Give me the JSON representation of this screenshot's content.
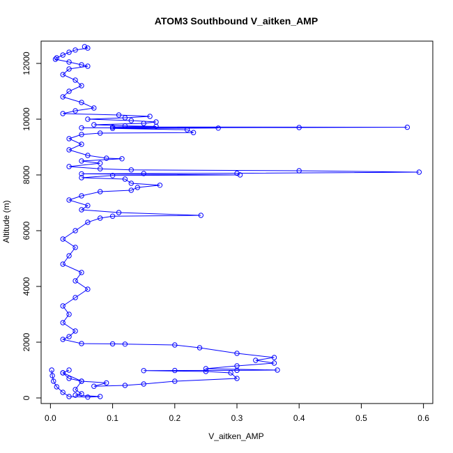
{
  "chart_data": {
    "type": "line",
    "title": "ATOM3 Southbound V_aitken_AMP",
    "xlabel": "V_aitken_AMP",
    "ylabel": "Altitude (m)",
    "xlim": [
      -0.015,
      0.615
    ],
    "ylim": [
      -200,
      12800
    ],
    "x_ticks": [
      "0.0",
      "0.1",
      "0.2",
      "0.3",
      "0.4",
      "0.5",
      "0.6"
    ],
    "y_ticks": [
      "0",
      "2000",
      "4000",
      "6000",
      "8000",
      "10000",
      "12000"
    ],
    "grid": false,
    "legend": "none",
    "marker": "open-circle",
    "series": [
      {
        "color": "#0000ff",
        "points": [
          [
            0.055,
            12600
          ],
          [
            0.06,
            12550
          ],
          [
            0.04,
            12480
          ],
          [
            0.03,
            12400
          ],
          [
            0.02,
            12300
          ],
          [
            0.01,
            12200
          ],
          [
            0.008,
            12150
          ],
          [
            0.03,
            12050
          ],
          [
            0.05,
            11950
          ],
          [
            0.06,
            11900
          ],
          [
            0.03,
            11800
          ],
          [
            0.02,
            11600
          ],
          [
            0.04,
            11400
          ],
          [
            0.05,
            11200
          ],
          [
            0.03,
            11000
          ],
          [
            0.02,
            10800
          ],
          [
            0.05,
            10600
          ],
          [
            0.07,
            10400
          ],
          [
            0.04,
            10300
          ],
          [
            0.02,
            10200
          ],
          [
            0.11,
            10150
          ],
          [
            0.16,
            10100
          ],
          [
            0.12,
            10050
          ],
          [
            0.06,
            10000
          ],
          [
            0.13,
            9950
          ],
          [
            0.17,
            9900
          ],
          [
            0.15,
            9850
          ],
          [
            0.07,
            9800
          ],
          [
            0.12,
            9760
          ],
          [
            0.17,
            9740
          ],
          [
            0.1,
            9720
          ],
          [
            0.574,
            9710
          ],
          [
            0.4,
            9700
          ],
          [
            0.05,
            9690
          ],
          [
            0.27,
            9680
          ],
          [
            0.1,
            9670
          ],
          [
            0.22,
            9620
          ],
          [
            0.23,
            9520
          ],
          [
            0.08,
            9500
          ],
          [
            0.05,
            9450
          ],
          [
            0.03,
            9300
          ],
          [
            0.05,
            9100
          ],
          [
            0.03,
            8900
          ],
          [
            0.06,
            8700
          ],
          [
            0.09,
            8600
          ],
          [
            0.115,
            8580
          ],
          [
            0.05,
            8500
          ],
          [
            0.08,
            8420
          ],
          [
            0.03,
            8300
          ],
          [
            0.08,
            8220
          ],
          [
            0.13,
            8180
          ],
          [
            0.4,
            8150
          ],
          [
            0.593,
            8100
          ],
          [
            0.3,
            8060
          ],
          [
            0.15,
            8050
          ],
          [
            0.05,
            8040
          ],
          [
            0.305,
            8000
          ],
          [
            0.1,
            7980
          ],
          [
            0.05,
            7900
          ],
          [
            0.12,
            7850
          ],
          [
            0.13,
            7700
          ],
          [
            0.176,
            7630
          ],
          [
            0.14,
            7550
          ],
          [
            0.13,
            7450
          ],
          [
            0.08,
            7400
          ],
          [
            0.05,
            7250
          ],
          [
            0.03,
            7100
          ],
          [
            0.06,
            6900
          ],
          [
            0.05,
            6750
          ],
          [
            0.11,
            6650
          ],
          [
            0.242,
            6550
          ],
          [
            0.1,
            6520
          ],
          [
            0.08,
            6450
          ],
          [
            0.06,
            6300
          ],
          [
            0.04,
            6000
          ],
          [
            0.02,
            5700
          ],
          [
            0.04,
            5400
          ],
          [
            0.03,
            5100
          ],
          [
            0.02,
            4800
          ],
          [
            0.05,
            4500
          ],
          [
            0.04,
            4200
          ],
          [
            0.06,
            3900
          ],
          [
            0.04,
            3600
          ],
          [
            0.02,
            3300
          ],
          [
            0.03,
            3000
          ],
          [
            0.02,
            2700
          ],
          [
            0.04,
            2400
          ],
          [
            0.03,
            2200
          ],
          [
            0.02,
            2100
          ],
          [
            0.05,
            1950
          ],
          [
            0.1,
            1940
          ],
          [
            0.12,
            1930
          ],
          [
            0.2,
            1900
          ],
          [
            0.24,
            1800
          ],
          [
            0.3,
            1600
          ],
          [
            0.36,
            1450
          ],
          [
            0.33,
            1350
          ],
          [
            0.36,
            1250
          ],
          [
            0.3,
            1150
          ],
          [
            0.25,
            1050
          ],
          [
            0.365,
            1000
          ],
          [
            0.3,
            990
          ],
          [
            0.2,
            985
          ],
          [
            0.15,
            980
          ],
          [
            0.25,
            950
          ],
          [
            0.29,
            900
          ],
          [
            0.3,
            700
          ],
          [
            0.2,
            600
          ],
          [
            0.15,
            500
          ],
          [
            0.12,
            450
          ],
          [
            0.07,
            420
          ],
          [
            0.09,
            540
          ],
          [
            0.05,
            600
          ],
          [
            0.03,
            700
          ],
          [
            0.02,
            900
          ],
          [
            0.03,
            1000
          ],
          [
            0.02,
            900
          ],
          [
            0.05,
            600
          ],
          [
            0.04,
            300
          ],
          [
            0.05,
            150
          ],
          [
            0.04,
            100
          ],
          [
            0.08,
            50
          ],
          [
            0.06,
            30
          ],
          [
            0.03,
            50
          ],
          [
            0.02,
            200
          ],
          [
            0.01,
            400
          ],
          [
            0.005,
            600
          ],
          [
            0.003,
            800
          ],
          [
            0.002,
            1000
          ]
        ]
      }
    ]
  }
}
